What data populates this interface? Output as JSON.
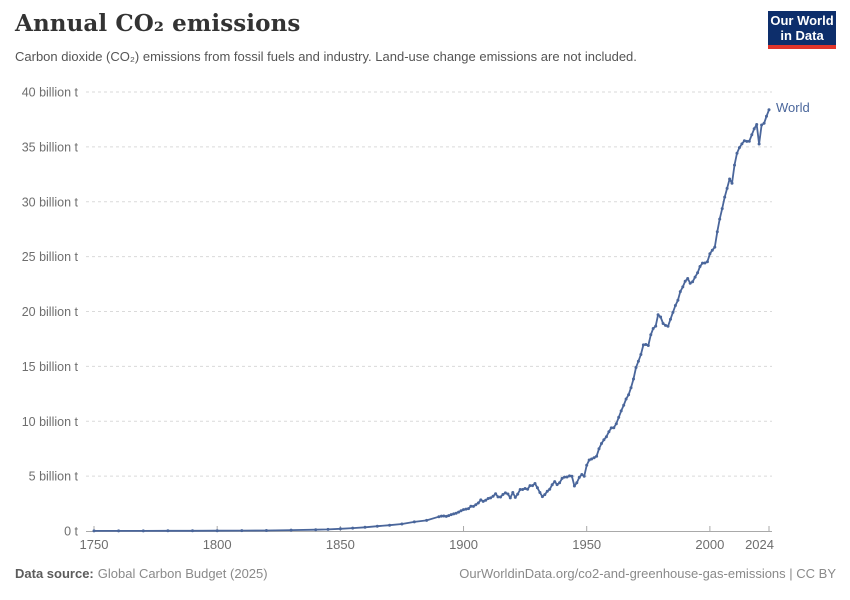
{
  "header": {
    "title": "Annual CO₂ emissions",
    "subtitle": "Carbon dioxide (CO₂) emissions from fossil fuels and industry. Land-use change emissions are not included.",
    "logo": {
      "line1": "Our World",
      "line2": "in Data",
      "bg_color": "#0d2e6b",
      "accent_color": "#e0352b"
    }
  },
  "footer": {
    "source_label": "Data source:",
    "source_value": "Global Carbon Budget (2025)",
    "link_text": "OurWorldinData.org/co2-and-greenhouse-gas-emissions | CC BY"
  },
  "chart_data": {
    "type": "line",
    "title": "Annual CO₂ emissions",
    "subtitle": "Carbon dioxide (CO₂) emissions from fossil fuels and industry. Land-use change emissions are not included.",
    "unit": "billion tonnes CO₂ per year",
    "x_range": [
      1750,
      2024
    ],
    "y_range": [
      0,
      40
    ],
    "grid": true,
    "legend_position": "end-of-line",
    "x_ticks": [
      1750,
      1800,
      1850,
      1900,
      1950,
      2000,
      2024
    ],
    "y_ticks": [
      {
        "value": 0,
        "label": "0 t"
      },
      {
        "value": 5,
        "label": "5 billion t"
      },
      {
        "value": 10,
        "label": "10 billion t"
      },
      {
        "value": 15,
        "label": "15 billion t"
      },
      {
        "value": 20,
        "label": "20 billion t"
      },
      {
        "value": 25,
        "label": "25 billion t"
      },
      {
        "value": 30,
        "label": "30 billion t"
      },
      {
        "value": 35,
        "label": "35 billion t"
      },
      {
        "value": 40,
        "label": "40 billion t"
      }
    ],
    "series": [
      {
        "name": "World",
        "color": "#4a669b",
        "points": [
          [
            1750,
            0.01
          ],
          [
            1760,
            0.01
          ],
          [
            1770,
            0.01
          ],
          [
            1780,
            0.02
          ],
          [
            1790,
            0.02
          ],
          [
            1800,
            0.03
          ],
          [
            1810,
            0.04
          ],
          [
            1820,
            0.05
          ],
          [
            1830,
            0.08
          ],
          [
            1840,
            0.12
          ],
          [
            1845,
            0.15
          ],
          [
            1850,
            0.2
          ],
          [
            1855,
            0.26
          ],
          [
            1860,
            0.34
          ],
          [
            1865,
            0.44
          ],
          [
            1870,
            0.53
          ],
          [
            1875,
            0.64
          ],
          [
            1880,
            0.83
          ],
          [
            1885,
            0.97
          ],
          [
            1890,
            1.3
          ],
          [
            1891,
            1.36
          ],
          [
            1892,
            1.37
          ],
          [
            1893,
            1.33
          ],
          [
            1894,
            1.4
          ],
          [
            1895,
            1.49
          ],
          [
            1896,
            1.56
          ],
          [
            1897,
            1.62
          ],
          [
            1898,
            1.72
          ],
          [
            1899,
            1.85
          ],
          [
            1900,
            1.95
          ],
          [
            1901,
            2.0
          ],
          [
            1902,
            2.04
          ],
          [
            1903,
            2.25
          ],
          [
            1904,
            2.24
          ],
          [
            1905,
            2.4
          ],
          [
            1906,
            2.55
          ],
          [
            1907,
            2.83
          ],
          [
            1908,
            2.7
          ],
          [
            1909,
            2.8
          ],
          [
            1910,
            2.96
          ],
          [
            1911,
            3.02
          ],
          [
            1912,
            3.17
          ],
          [
            1913,
            3.4
          ],
          [
            1914,
            3.11
          ],
          [
            1915,
            3.1
          ],
          [
            1916,
            3.33
          ],
          [
            1917,
            3.47
          ],
          [
            1918,
            3.37
          ],
          [
            1919,
            3.02
          ],
          [
            1920,
            3.51
          ],
          [
            1921,
            3.06
          ],
          [
            1922,
            3.36
          ],
          [
            1923,
            3.78
          ],
          [
            1924,
            3.78
          ],
          [
            1925,
            3.87
          ],
          [
            1926,
            3.8
          ],
          [
            1927,
            4.14
          ],
          [
            1928,
            4.14
          ],
          [
            1929,
            4.33
          ],
          [
            1930,
            3.94
          ],
          [
            1931,
            3.51
          ],
          [
            1932,
            3.13
          ],
          [
            1933,
            3.32
          ],
          [
            1934,
            3.62
          ],
          [
            1935,
            3.8
          ],
          [
            1936,
            4.22
          ],
          [
            1937,
            4.5
          ],
          [
            1938,
            4.23
          ],
          [
            1939,
            4.39
          ],
          [
            1940,
            4.79
          ],
          [
            1941,
            4.91
          ],
          [
            1942,
            4.92
          ],
          [
            1943,
            5.02
          ],
          [
            1944,
            4.99
          ],
          [
            1945,
            4.1
          ],
          [
            1946,
            4.39
          ],
          [
            1947,
            4.88
          ],
          [
            1948,
            5.15
          ],
          [
            1949,
            4.98
          ],
          [
            1950,
            5.99
          ],
          [
            1951,
            6.47
          ],
          [
            1952,
            6.56
          ],
          [
            1953,
            6.68
          ],
          [
            1954,
            6.82
          ],
          [
            1955,
            7.49
          ],
          [
            1956,
            7.97
          ],
          [
            1957,
            8.31
          ],
          [
            1958,
            8.59
          ],
          [
            1959,
            9.05
          ],
          [
            1960,
            9.39
          ],
          [
            1961,
            9.41
          ],
          [
            1962,
            9.78
          ],
          [
            1963,
            10.35
          ],
          [
            1964,
            10.94
          ],
          [
            1965,
            11.45
          ],
          [
            1966,
            12.03
          ],
          [
            1967,
            12.41
          ],
          [
            1968,
            13.06
          ],
          [
            1969,
            13.85
          ],
          [
            1970,
            14.9
          ],
          [
            1971,
            15.46
          ],
          [
            1972,
            16.08
          ],
          [
            1973,
            16.96
          ],
          [
            1974,
            16.99
          ],
          [
            1975,
            16.9
          ],
          [
            1976,
            17.88
          ],
          [
            1977,
            18.45
          ],
          [
            1978,
            18.67
          ],
          [
            1979,
            19.71
          ],
          [
            1980,
            19.5
          ],
          [
            1981,
            18.91
          ],
          [
            1982,
            18.73
          ],
          [
            1983,
            18.65
          ],
          [
            1984,
            19.3
          ],
          [
            1985,
            19.92
          ],
          [
            1986,
            20.55
          ],
          [
            1987,
            21.02
          ],
          [
            1988,
            21.81
          ],
          [
            1989,
            22.24
          ],
          [
            1990,
            22.76
          ],
          [
            1991,
            23.01
          ],
          [
            1992,
            22.58
          ],
          [
            1993,
            22.71
          ],
          [
            1994,
            23.13
          ],
          [
            1995,
            23.53
          ],
          [
            1996,
            24.1
          ],
          [
            1997,
            24.41
          ],
          [
            1998,
            24.42
          ],
          [
            1999,
            24.54
          ],
          [
            2000,
            25.26
          ],
          [
            2001,
            25.58
          ],
          [
            2002,
            25.87
          ],
          [
            2003,
            27.27
          ],
          [
            2004,
            28.42
          ],
          [
            2005,
            29.38
          ],
          [
            2006,
            30.42
          ],
          [
            2007,
            31.22
          ],
          [
            2008,
            32.07
          ],
          [
            2009,
            31.69
          ],
          [
            2010,
            33.34
          ],
          [
            2011,
            34.42
          ],
          [
            2012,
            34.93
          ],
          [
            2013,
            35.27
          ],
          [
            2014,
            35.56
          ],
          [
            2015,
            35.5
          ],
          [
            2016,
            35.52
          ],
          [
            2017,
            36.1
          ],
          [
            2018,
            36.65
          ],
          [
            2019,
            37.04
          ],
          [
            2020,
            35.26
          ],
          [
            2021,
            36.99
          ],
          [
            2022,
            37.15
          ],
          [
            2023,
            37.79
          ],
          [
            2024,
            38.38
          ]
        ]
      }
    ]
  }
}
